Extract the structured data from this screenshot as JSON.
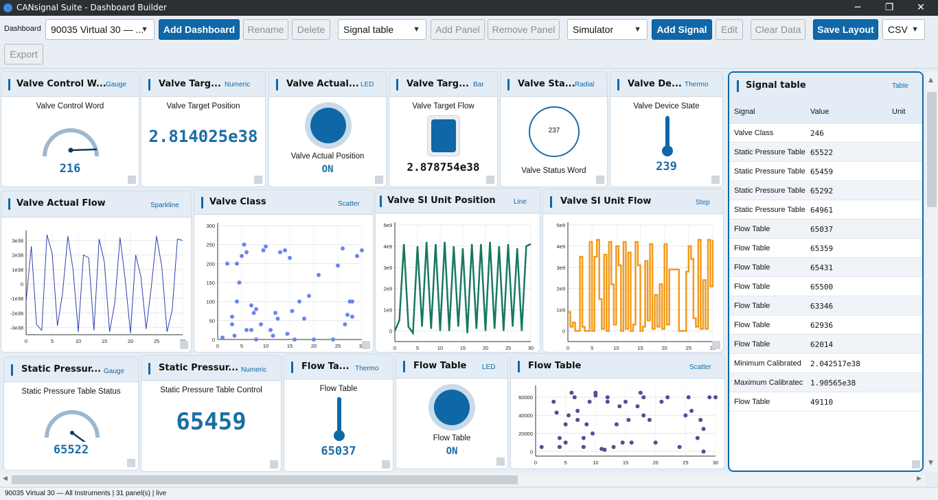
{
  "window": {
    "title": "CANsignal Suite - Dashboard Builder",
    "min": "─",
    "restore": "❐",
    "close": "✕"
  },
  "toolbar": {
    "dashboard_label": "Dashboard",
    "dashboard_select": "90035 Virtual 30 — ...",
    "add_dashboard": "Add Dashboard",
    "rename": "Rename",
    "delete": "Delete",
    "panel_type_select": "Signal table",
    "add_panel": "Add Panel",
    "remove_panel": "Remove Panel",
    "source_select": "Simulator",
    "add_signal": "Add Signal",
    "edit": "Edit",
    "clear_data": "Clear Data",
    "save_layout": "Save Layout",
    "format_select": "CSV",
    "export": "Export"
  },
  "panels": {
    "p1": {
      "title": "Valve Control W...",
      "type": "Gauge",
      "label": "Valve Control Word",
      "value": "216",
      "gauge_fraction": 0.85
    },
    "p2": {
      "title": "Valve Targ...",
      "type": "Numeric",
      "label": "Valve Target Position",
      "value": "2.814025e38"
    },
    "p3": {
      "title": "Valve Actual...",
      "type": "LED",
      "label": "Valve Actual Position",
      "value": "ON"
    },
    "p4": {
      "title": "Valve Targ...",
      "type": "Bar",
      "label": "Valve Target Flow",
      "value": "2.878754e38"
    },
    "p5": {
      "title": "Valve Sta...",
      "type": "Radial",
      "label": "Valve Status Word",
      "value": "237"
    },
    "p6": {
      "title": "Valve De...",
      "type": "Thermo",
      "label": "Valve Device State",
      "value": "239"
    },
    "p7": {
      "title": "Valve Actual Flow",
      "type": "Sparkline"
    },
    "p8": {
      "title": "Valve Class",
      "type": "Scatter"
    },
    "p9": {
      "title": "Valve SI Unit Position",
      "type": "Line"
    },
    "p10": {
      "title": "Valve SI Unit Flow",
      "type": "Step"
    },
    "p11": {
      "title": "Static Pressur...",
      "type": "Gauge",
      "label": "Static Pressure Table Status",
      "value": "65522",
      "gauge_fraction": 1.0
    },
    "p12": {
      "title": "Static Pressur...",
      "type": "Numeric",
      "label": "Static Pressure Table Control",
      "value": "65459"
    },
    "p13": {
      "title": "Flow Ta...",
      "type": "Thermo",
      "label": "Flow Table",
      "value": "65037"
    },
    "p14": {
      "title": "Flow Table",
      "type": "LED",
      "label": "Flow Table",
      "value": "ON"
    },
    "p15": {
      "title": "Flow Table",
      "type": "Scatter"
    }
  },
  "signal_table": {
    "title": "Signal table",
    "type": "Table",
    "columns": [
      "Signal",
      "Value",
      "Unit"
    ],
    "rows": [
      [
        "Valve Class",
        "246",
        ""
      ],
      [
        "Static Pressure Table",
        "65522",
        ""
      ],
      [
        "Static Pressure Table",
        "65459",
        ""
      ],
      [
        "Static Pressure Table",
        "65292",
        ""
      ],
      [
        "Static Pressure Table",
        "64961",
        ""
      ],
      [
        "Flow Table",
        "65037",
        ""
      ],
      [
        "Flow Table",
        "65359",
        ""
      ],
      [
        "Flow Table",
        "65431",
        ""
      ],
      [
        "Flow Table",
        "65500",
        ""
      ],
      [
        "Flow Table",
        "63346",
        ""
      ],
      [
        "Flow Table",
        "62936",
        ""
      ],
      [
        "Flow Table",
        "62014",
        ""
      ],
      [
        "Minimum Calibrated",
        "2.042517e38",
        ""
      ],
      [
        "Maximum Calibratec",
        "1.90565e38",
        ""
      ],
      [
        "Flow Table",
        "49110",
        ""
      ]
    ]
  },
  "chart_data": [
    {
      "type": "line",
      "name": "sparkline",
      "x": [
        0,
        1,
        2,
        3,
        4,
        5,
        6,
        7,
        8,
        9,
        10,
        11,
        12,
        13,
        14,
        15,
        16,
        17,
        18,
        19,
        20,
        21,
        22,
        23,
        24,
        25,
        26,
        27,
        28,
        29,
        30
      ],
      "y": [
        -1.2e+38,
        2.6e+38,
        -2.8e+38,
        -3.2e+38,
        3.4e+38,
        2.1e+38,
        -2.9e+38,
        -6e+37,
        3.3e+38,
        1e+38,
        -3.3e+38,
        2e+38,
        1.8e+38,
        -3.2e+38,
        3.1e+38,
        1.5e+38,
        -3.3e+38,
        -1.3e+38,
        3.2e+38,
        3e+37,
        -3.4e+38,
        2e+38,
        5e+37,
        -3.1e+38,
        -2e+37,
        3.3e+38,
        1.2e+38,
        -3.3e+38,
        -1.8e+38,
        3.1e+38,
        3e+38
      ],
      "xlim": [
        0,
        30
      ],
      "ylim": [
        -3.5e+38,
        3.5e+38
      ],
      "xticks": [
        0,
        5,
        10,
        15,
        20,
        25,
        30
      ],
      "yticks": [
        "3e38",
        "2e38",
        "1e38",
        "0",
        "-1e38",
        "-2e38",
        "-3e38"
      ]
    },
    {
      "type": "scatter",
      "name": "valve-class",
      "x": [
        1,
        2,
        3,
        3,
        3.5,
        4,
        4,
        4.5,
        5,
        5.5,
        6,
        6,
        7,
        7,
        7.5,
        8,
        8,
        9,
        9.5,
        10,
        11,
        11.5,
        12,
        12.5,
        13,
        14,
        14.5,
        15,
        15.5,
        16,
        17,
        18,
        19,
        20,
        21,
        24,
        25,
        26,
        26.5,
        27,
        27.5,
        28,
        28,
        29,
        30
      ],
      "y": [
        5,
        200,
        60,
        40,
        10,
        200,
        100,
        150,
        220,
        250,
        230,
        25,
        90,
        25,
        70,
        80,
        0,
        40,
        235,
        245,
        25,
        10,
        70,
        55,
        230,
        235,
        15,
        215,
        75,
        0,
        100,
        55,
        115,
        0,
        170,
        0,
        195,
        240,
        40,
        65,
        100,
        100,
        60,
        220,
        235
      ],
      "xlim": [
        0,
        30
      ],
      "ylim": [
        0,
        300
      ],
      "xticks": [
        0,
        5,
        10,
        15,
        20,
        25,
        30
      ],
      "yticks": [
        0,
        50,
        100,
        150,
        200,
        250,
        300
      ]
    },
    {
      "type": "line",
      "name": "si-position",
      "x": [
        0,
        1,
        2,
        3,
        4,
        5,
        6,
        7,
        8,
        9,
        10,
        11,
        12,
        13,
        14,
        15,
        16,
        17,
        18,
        19,
        20,
        21,
        22,
        23,
        24,
        25,
        26,
        27,
        28,
        29,
        30
      ],
      "y": [
        0,
        500000000.0,
        4100000000.0,
        200000000.0,
        -100000000.0,
        4000000000.0,
        200000000.0,
        4200000000.0,
        100000000.0,
        4100000000.0,
        0,
        4200000000.0,
        0,
        4000000000.0,
        200000000.0,
        3900000000.0,
        -100000000.0,
        4100000000.0,
        100000000.0,
        4100000000.0,
        0,
        4200000000.0,
        100000000.0,
        4000000000.0,
        0,
        4100000000.0,
        200000000.0,
        3900000000.0,
        0,
        4000000000.0,
        4100000000.0
      ],
      "xlim": [
        0,
        30
      ],
      "ylim": [
        -500000000.0,
        5000000000.0
      ],
      "xticks": [
        0,
        5,
        10,
        15,
        20,
        25,
        30
      ],
      "yticks": [
        "5e9",
        "4e9",
        "3e9",
        "2e9",
        "1e9",
        "0"
      ]
    },
    {
      "type": "line",
      "name": "si-flow-step",
      "x": [
        0,
        0.5,
        1,
        1.5,
        2,
        2.5,
        3,
        3.5,
        4,
        4.5,
        5,
        5.5,
        6,
        6.5,
        7,
        7.5,
        8,
        8.5,
        9,
        9.5,
        10,
        10.5,
        11,
        11.5,
        12,
        12.5,
        13,
        13.5,
        14,
        14.5,
        15,
        15.5,
        16,
        16.5,
        17,
        17.5,
        18,
        18.5,
        19,
        19.5,
        20,
        20.5,
        21,
        21.5,
        22,
        22.5,
        23,
        23.5,
        24,
        24.5,
        25,
        25.5,
        26,
        26.5,
        27,
        27.5,
        28,
        28.5,
        29,
        29.5,
        30
      ],
      "y": [
        900000000.0,
        200000000.0,
        400000000.0,
        0,
        0,
        3500000000.0,
        200000000.0,
        0,
        0,
        4200000000.0,
        0,
        3500000000.0,
        4300000000.0,
        1500000000.0,
        100000000.0,
        3600000000.0,
        0,
        4200000000.0,
        2200000000.0,
        300000000.0,
        4000000000.0,
        3100000000.0,
        0,
        4200000000.0,
        100000000.0,
        3700000000.0,
        0,
        300000000.0,
        4200000000.0,
        3100000000.0,
        0,
        200000000.0,
        3300000000.0,
        500000000.0,
        4100000000.0,
        100000000.0,
        1700000000.0,
        200000000.0,
        2200000000.0,
        100000000.0,
        4100000000.0,
        300000000.0,
        2900000000.0,
        2900000000.0,
        2900000000.0,
        2900000000.0,
        0,
        0,
        0,
        2800000000.0,
        4000000000.0,
        3400000000.0,
        600000000.0,
        200000000.0,
        4300000000.0,
        100000000.0,
        2400000000.0,
        100000000.0,
        4300000000.0,
        2100000000.0,
        4300000000.0
      ],
      "xlim": [
        0,
        30
      ],
      "ylim": [
        -500000000.0,
        5000000000.0
      ],
      "xticks": [
        0,
        5,
        10,
        15,
        20,
        25,
        30
      ],
      "yticks": [
        "5e9",
        "4e9",
        "3e9",
        "2e9",
        "1e9",
        "0"
      ]
    },
    {
      "type": "scatter",
      "name": "flow-table",
      "x": [
        1,
        3,
        3.5,
        4,
        4,
        5,
        5,
        5.5,
        6,
        6.5,
        7,
        7,
        8,
        8,
        8.5,
        9,
        9.5,
        10,
        10,
        11,
        11.5,
        12,
        12,
        13,
        13.5,
        14,
        14.5,
        15,
        15.5,
        16,
        17,
        17.5,
        18,
        18,
        19,
        20,
        21,
        22,
        24,
        25,
        25.5,
        26,
        27,
        27.5,
        28,
        28,
        29,
        30
      ],
      "y": [
        5000,
        55000,
        43000,
        15000,
        5000,
        10000,
        30000,
        40000,
        65000,
        60000,
        45000,
        35000,
        15000,
        5000,
        30000,
        55000,
        20000,
        62000,
        65000,
        3000,
        2000,
        60000,
        55000,
        5000,
        30000,
        50000,
        10000,
        55000,
        35000,
        10000,
        50000,
        65000,
        40000,
        60000,
        35000,
        10000,
        55000,
        60000,
        5000,
        40000,
        60000,
        45000,
        15000,
        35000,
        0,
        25000,
        60000,
        60000
      ],
      "xlim": [
        0,
        30
      ],
      "ylim": [
        -5000,
        70000
      ],
      "xticks": [
        0,
        5,
        10,
        15,
        20,
        25,
        30
      ],
      "yticks": [
        0,
        20000,
        40000,
        60000
      ]
    }
  ],
  "colors": {
    "accent": "#0f67a7",
    "value_text": "#1a6ea5",
    "line_green": "#17785f",
    "step_orange": "#f39a1b",
    "scatter_blue": "#6a86ee",
    "scatter_purple": "#5a4a97",
    "spark_blue": "#2e3db3"
  },
  "status": {
    "text": "90035 Virtual 30 — All Instruments | 31 panel(s) | live"
  }
}
